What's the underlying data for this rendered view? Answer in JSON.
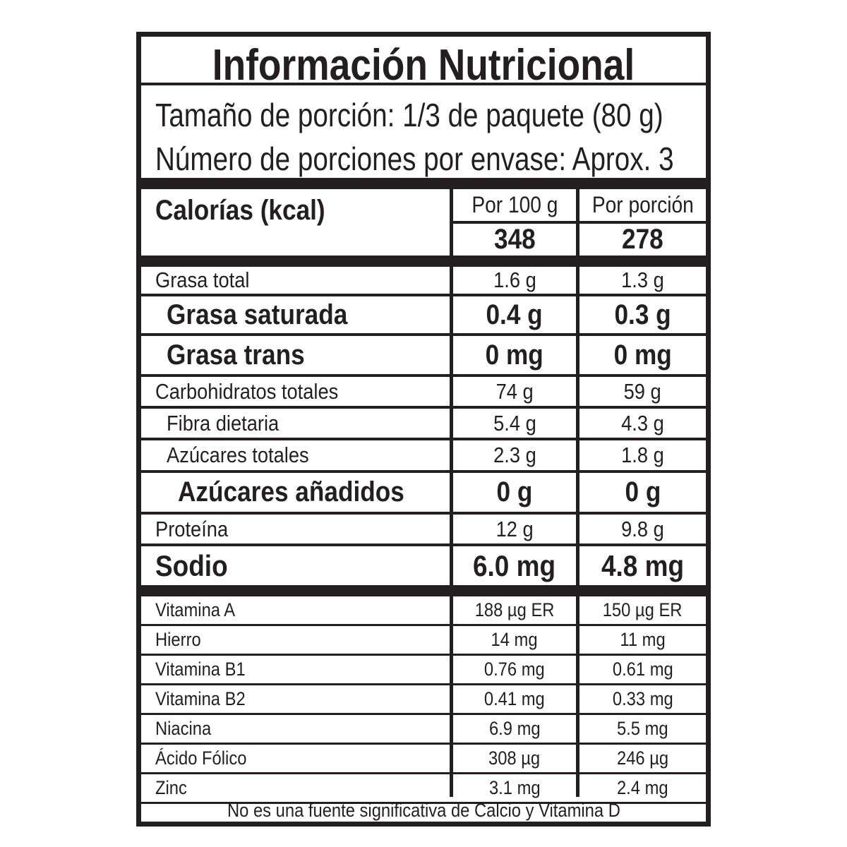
{
  "title": "Información Nutricional",
  "serving_size": "Tamaño de porción: 1/3 de paquete (80 g)",
  "servings_per_container": "Número de porciones por envase: Aprox. 3",
  "calories": {
    "label": "Calorías (kcal)",
    "col1_header": "Por 100 g",
    "col2_header": "Por porción",
    "per_100g": "348",
    "per_serving": "278"
  },
  "nutrients": [
    {
      "name": "Grasa total",
      "per_100g": "1.6 g",
      "per_serving": "1.3 g",
      "style": "normal"
    },
    {
      "name": "Grasa saturada",
      "per_100g": "0.4 g",
      "per_serving": "0.3 g",
      "style": "bold-indent"
    },
    {
      "name": "Grasa trans",
      "per_100g": "0 mg",
      "per_serving": "0 mg",
      "style": "bold-indent"
    },
    {
      "name": "Carbohidratos totales",
      "per_100g": "74 g",
      "per_serving": "59 g",
      "style": "normal"
    },
    {
      "name": "Fibra dietaria",
      "per_100g": "5.4 g",
      "per_serving": "4.3 g",
      "style": "indent"
    },
    {
      "name": "Azúcares totales",
      "per_100g": "2.3 g",
      "per_serving": "1.8 g",
      "style": "indent"
    },
    {
      "name": "Azúcares añadidos",
      "per_100g": "0 g",
      "per_serving": "0 g",
      "style": "bold-indent2"
    },
    {
      "name": "Proteína",
      "per_100g": "12 g",
      "per_serving": "9.8 g",
      "style": "normal"
    },
    {
      "name": "Sodio",
      "per_100g": "6.0 mg",
      "per_serving": "4.8 mg",
      "style": "bold"
    }
  ],
  "vitamins": [
    {
      "name": "Vitamina A",
      "per_100g": "188 µg ER",
      "per_serving": "150 µg ER"
    },
    {
      "name": "Hierro",
      "per_100g": "14 mg",
      "per_serving": "11 mg"
    },
    {
      "name": "Vitamina B1",
      "per_100g": "0.76 mg",
      "per_serving": "0.61 mg"
    },
    {
      "name": "Vitamina B2",
      "per_100g": "0.41 mg",
      "per_serving": "0.33 mg"
    },
    {
      "name": "Niacina",
      "per_100g": "6.9 mg",
      "per_serving": "5.5 mg"
    },
    {
      "name": "Ácido Fólico",
      "per_100g": "308 µg",
      "per_serving": "246 µg"
    },
    {
      "name": "Zinc",
      "per_100g": "3.1 mg",
      "per_serving": "2.4 mg"
    }
  ],
  "footer": "No es una fuente significativa de Calcio y Vitamina D"
}
